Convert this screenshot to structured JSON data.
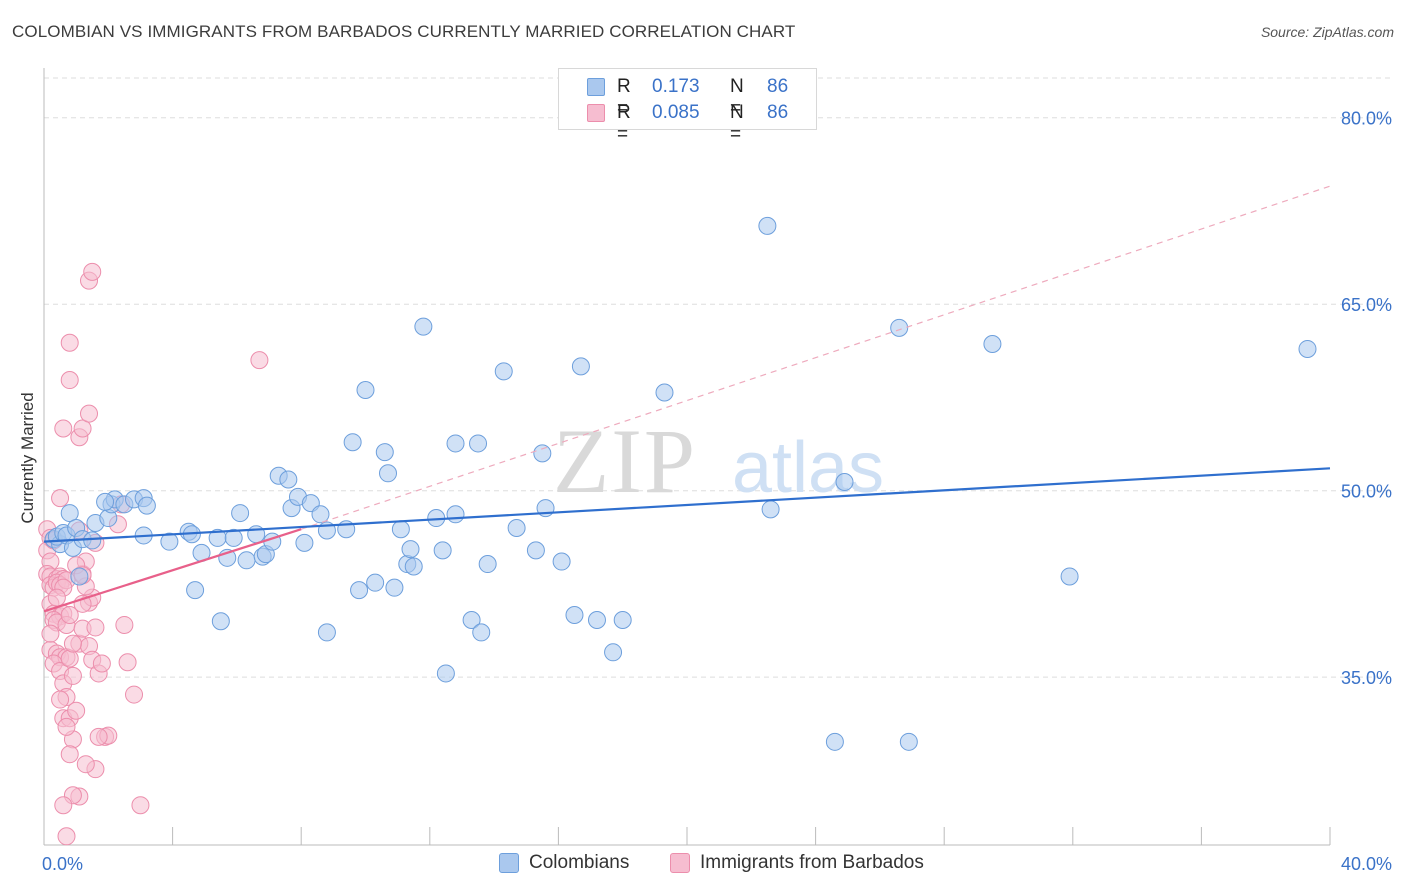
{
  "title": "COLOMBIAN VS IMMIGRANTS FROM BARBADOS CURRENTLY MARRIED CORRELATION CHART",
  "source": "Source: ZipAtlas.com",
  "watermark": {
    "zip": "ZIP",
    "atlas": "atlas"
  },
  "legend": {
    "rows": [
      {
        "r_label": "R =",
        "r_value": "0.173",
        "n_label": "N =",
        "n_value": "86"
      },
      {
        "r_label": "R =",
        "r_value": "0.085",
        "n_label": "N =",
        "n_value": "86"
      }
    ]
  },
  "bottom_legend": [
    "Colombians",
    "Immigrants from Barbados"
  ],
  "colors": {
    "blue_fill": "#aac8ee",
    "blue_stroke": "#6d9fdc",
    "blue_line": "#2f6fce",
    "pink_fill": "#f6bdd0",
    "pink_stroke": "#ec8eac",
    "pink_line": "#e8608a",
    "tick_label": "#3a72c8",
    "grid": "#dedede"
  },
  "chart_data": {
    "type": "scatter",
    "title": "COLOMBIAN VS IMMIGRANTS FROM BARBADOS CURRENTLY MARRIED CORRELATION CHART",
    "xlabel": "",
    "ylabel": "Currently Married",
    "xlim": [
      0,
      40
    ],
    "ylim": [
      21.5,
      84
    ],
    "x_tick_labels": [
      "0.0%",
      "40.0%"
    ],
    "y_ticks": [
      35,
      50,
      65,
      80
    ],
    "y_tick_labels": [
      "35.0%",
      "50.0%",
      "65.0%",
      "80.0%"
    ],
    "series": [
      {
        "name": "Colombians",
        "R": 0.173,
        "N": 86,
        "trend": {
          "x": [
            0,
            40
          ],
          "y": [
            45.9,
            51.8
          ]
        },
        "points": [
          [
            0.3,
            46.1
          ],
          [
            0.5,
            45.7
          ],
          [
            0.4,
            46.3
          ],
          [
            0.6,
            46.6
          ],
          [
            0.7,
            46.4
          ],
          [
            0.8,
            48.2
          ],
          [
            0.9,
            45.4
          ],
          [
            1.0,
            47.0
          ],
          [
            1.1,
            43.1
          ],
          [
            1.2,
            46.1
          ],
          [
            1.5,
            46.0
          ],
          [
            1.6,
            47.4
          ],
          [
            2.0,
            47.8
          ],
          [
            2.1,
            48.9
          ],
          [
            2.2,
            49.3
          ],
          [
            2.5,
            48.9
          ],
          [
            2.8,
            49.3
          ],
          [
            3.1,
            49.4
          ],
          [
            3.2,
            48.8
          ],
          [
            3.1,
            46.4
          ],
          [
            3.9,
            45.9
          ],
          [
            4.5,
            46.7
          ],
          [
            4.6,
            46.5
          ],
          [
            4.7,
            42.0
          ],
          [
            4.9,
            45.0
          ],
          [
            5.4,
            46.2
          ],
          [
            5.5,
            39.5
          ],
          [
            5.7,
            44.6
          ],
          [
            5.9,
            46.2
          ],
          [
            6.1,
            48.2
          ],
          [
            6.3,
            44.4
          ],
          [
            6.6,
            46.5
          ],
          [
            6.8,
            44.7
          ],
          [
            6.9,
            44.9
          ],
          [
            7.1,
            45.9
          ],
          [
            7.3,
            51.2
          ],
          [
            7.6,
            50.9
          ],
          [
            7.7,
            48.6
          ],
          [
            7.9,
            49.5
          ],
          [
            8.1,
            45.8
          ],
          [
            8.3,
            49.0
          ],
          [
            8.6,
            48.1
          ],
          [
            8.8,
            46.8
          ],
          [
            8.8,
            38.6
          ],
          [
            9.4,
            46.9
          ],
          [
            9.6,
            53.9
          ],
          [
            9.8,
            42.0
          ],
          [
            10.0,
            58.1
          ],
          [
            10.3,
            42.6
          ],
          [
            10.6,
            53.1
          ],
          [
            10.7,
            51.4
          ],
          [
            10.9,
            42.2
          ],
          [
            11.1,
            46.9
          ],
          [
            11.3,
            44.1
          ],
          [
            11.5,
            43.9
          ],
          [
            11.4,
            45.3
          ],
          [
            11.8,
            63.2
          ],
          [
            12.2,
            47.8
          ],
          [
            12.4,
            45.2
          ],
          [
            12.8,
            48.1
          ],
          [
            12.5,
            35.3
          ],
          [
            12.8,
            53.8
          ],
          [
            13.3,
            39.6
          ],
          [
            13.6,
            38.6
          ],
          [
            13.5,
            53.8
          ],
          [
            13.8,
            44.1
          ],
          [
            14.3,
            59.6
          ],
          [
            14.7,
            47.0
          ],
          [
            15.3,
            45.2
          ],
          [
            15.5,
            53.0
          ],
          [
            15.6,
            48.6
          ],
          [
            16.1,
            44.3
          ],
          [
            16.5,
            40.0
          ],
          [
            16.7,
            60.0
          ],
          [
            17.2,
            39.6
          ],
          [
            17.7,
            37.0
          ],
          [
            18.0,
            39.6
          ],
          [
            19.3,
            57.9
          ],
          [
            22.5,
            71.3
          ],
          [
            22.6,
            48.5
          ],
          [
            24.6,
            29.8
          ],
          [
            24.9,
            50.7
          ],
          [
            26.6,
            63.1
          ],
          [
            26.9,
            29.8
          ],
          [
            29.5,
            61.8
          ],
          [
            31.9,
            43.1
          ],
          [
            39.3,
            61.4
          ],
          [
            1.9,
            49.1
          ]
        ]
      },
      {
        "name": "Immigrants from Barbados",
        "R": 0.085,
        "N": 86,
        "trend": {
          "x": [
            0,
            8.0
          ],
          "y": [
            40.3,
            46.9
          ]
        },
        "dashed_extension": {
          "x": [
            8.0,
            40
          ],
          "y": [
            46.9,
            74.5
          ]
        },
        "points": [
          [
            0.1,
            46.9
          ],
          [
            0.2,
            46.2
          ],
          [
            0.1,
            45.2
          ],
          [
            0.3,
            46.0
          ],
          [
            0.2,
            44.3
          ],
          [
            0.1,
            43.3
          ],
          [
            0.2,
            43.1
          ],
          [
            0.4,
            42.9
          ],
          [
            0.5,
            43.1
          ],
          [
            0.6,
            42.9
          ],
          [
            0.2,
            42.4
          ],
          [
            0.3,
            42.2
          ],
          [
            0.4,
            42.6
          ],
          [
            0.5,
            42.4
          ],
          [
            0.7,
            42.8
          ],
          [
            0.6,
            42.2
          ],
          [
            0.2,
            40.9
          ],
          [
            0.3,
            40.1
          ],
          [
            0.5,
            39.9
          ],
          [
            0.6,
            40.1
          ],
          [
            0.3,
            39.6
          ],
          [
            0.4,
            39.4
          ],
          [
            0.7,
            39.2
          ],
          [
            0.8,
            40.0
          ],
          [
            0.2,
            37.2
          ],
          [
            0.4,
            36.9
          ],
          [
            0.5,
            36.6
          ],
          [
            0.7,
            36.6
          ],
          [
            0.3,
            36.1
          ],
          [
            0.5,
            35.5
          ],
          [
            0.6,
            34.5
          ],
          [
            0.7,
            33.4
          ],
          [
            0.5,
            33.2
          ],
          [
            0.6,
            31.7
          ],
          [
            0.8,
            31.7
          ],
          [
            0.9,
            30.0
          ],
          [
            0.8,
            28.8
          ],
          [
            1.1,
            25.4
          ],
          [
            0.9,
            25.5
          ],
          [
            0.6,
            24.7
          ],
          [
            0.7,
            22.2
          ],
          [
            0.5,
            49.4
          ],
          [
            0.6,
            55.0
          ],
          [
            0.8,
            61.9
          ],
          [
            0.8,
            58.9
          ],
          [
            1.1,
            54.3
          ],
          [
            1.2,
            55.0
          ],
          [
            1.4,
            56.2
          ],
          [
            1.4,
            66.9
          ],
          [
            1.5,
            67.6
          ],
          [
            1.2,
            43.3
          ],
          [
            1.3,
            44.3
          ],
          [
            1.4,
            41.0
          ],
          [
            1.5,
            41.4
          ],
          [
            1.1,
            37.7
          ],
          [
            1.2,
            38.9
          ],
          [
            1.4,
            37.5
          ],
          [
            1.5,
            36.4
          ],
          [
            1.6,
            39.0
          ],
          [
            1.7,
            35.3
          ],
          [
            1.8,
            36.1
          ],
          [
            1.9,
            30.2
          ],
          [
            2.0,
            30.3
          ],
          [
            1.6,
            27.6
          ],
          [
            2.3,
            47.3
          ],
          [
            2.4,
            48.9
          ],
          [
            2.5,
            39.2
          ],
          [
            2.6,
            36.2
          ],
          [
            2.8,
            33.6
          ],
          [
            3.0,
            24.7
          ],
          [
            6.7,
            60.5
          ],
          [
            1.6,
            45.8
          ],
          [
            1.7,
            30.2
          ],
          [
            1.0,
            32.3
          ],
          [
            0.9,
            35.1
          ],
          [
            1.2,
            40.9
          ],
          [
            1.3,
            42.3
          ],
          [
            0.4,
            41.4
          ],
          [
            0.2,
            38.5
          ],
          [
            1.0,
            44.0
          ],
          [
            0.8,
            36.5
          ],
          [
            1.3,
            28.0
          ],
          [
            0.9,
            37.7
          ],
          [
            1.1,
            46.8
          ],
          [
            0.7,
            31.0
          ],
          [
            1.2,
            43.2
          ]
        ]
      }
    ]
  }
}
